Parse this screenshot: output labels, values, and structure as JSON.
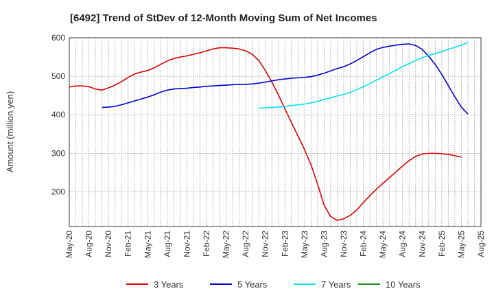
{
  "chart_data": {
    "type": "line",
    "title": "[6492]  Trend of StDev of 12-Month Moving Sum of Net Incomes",
    "ylabel": "Amount (million yen)",
    "xlabel": "",
    "ylim": [
      110,
      600
    ],
    "yticks": [
      200,
      300,
      400,
      500,
      600
    ],
    "x_range": [
      "2020-05",
      "2025-08"
    ],
    "x_tick_labels": [
      "May-20",
      "Aug-20",
      "Nov-20",
      "Feb-21",
      "May-21",
      "Aug-21",
      "Nov-21",
      "Feb-22",
      "May-22",
      "Aug-22",
      "Nov-22",
      "Feb-23",
      "May-23",
      "Aug-23",
      "Nov-23",
      "Feb-24",
      "May-24",
      "Aug-24",
      "Nov-24",
      "Feb-25",
      "May-25",
      "Aug-25"
    ],
    "grid": true,
    "legend_position": "bottom",
    "series": [
      {
        "name": "3 Years",
        "color": "#dd0000",
        "points": [
          [
            "2020-05",
            472
          ],
          [
            "2020-06",
            475
          ],
          [
            "2020-07",
            475
          ],
          [
            "2020-08",
            473
          ],
          [
            "2020-09",
            467
          ],
          [
            "2020-10",
            464
          ],
          [
            "2020-11",
            470
          ],
          [
            "2020-12",
            477
          ],
          [
            "2021-01",
            486
          ],
          [
            "2021-02",
            497
          ],
          [
            "2021-03",
            506
          ],
          [
            "2021-04",
            511
          ],
          [
            "2021-05",
            515
          ],
          [
            "2021-06",
            522
          ],
          [
            "2021-07",
            531
          ],
          [
            "2021-08",
            540
          ],
          [
            "2021-09",
            546
          ],
          [
            "2021-10",
            550
          ],
          [
            "2021-11",
            553
          ],
          [
            "2021-12",
            557
          ],
          [
            "2022-01",
            561
          ],
          [
            "2022-02",
            566
          ],
          [
            "2022-03",
            571
          ],
          [
            "2022-04",
            574
          ],
          [
            "2022-05",
            574
          ],
          [
            "2022-06",
            573
          ],
          [
            "2022-07",
            571
          ],
          [
            "2022-08",
            566
          ],
          [
            "2022-09",
            557
          ],
          [
            "2022-10",
            541
          ],
          [
            "2022-11",
            515
          ],
          [
            "2022-12",
            485
          ],
          [
            "2023-01",
            452
          ],
          [
            "2023-02",
            415
          ],
          [
            "2023-03",
            380
          ],
          [
            "2023-04",
            345
          ],
          [
            "2023-05",
            310
          ],
          [
            "2023-06",
            270
          ],
          [
            "2023-07",
            220
          ],
          [
            "2023-08",
            165
          ],
          [
            "2023-09",
            136
          ],
          [
            "2023-10",
            126
          ],
          [
            "2023-11",
            130
          ],
          [
            "2023-12",
            139
          ],
          [
            "2024-01",
            153
          ],
          [
            "2024-02",
            172
          ],
          [
            "2024-03",
            190
          ],
          [
            "2024-04",
            207
          ],
          [
            "2024-05",
            222
          ],
          [
            "2024-06",
            237
          ],
          [
            "2024-07",
            252
          ],
          [
            "2024-08",
            267
          ],
          [
            "2024-09",
            281
          ],
          [
            "2024-10",
            292
          ],
          [
            "2024-11",
            298
          ],
          [
            "2024-12",
            300
          ],
          [
            "2025-01",
            300
          ],
          [
            "2025-02",
            299
          ],
          [
            "2025-03",
            297
          ],
          [
            "2025-04",
            294
          ],
          [
            "2025-05",
            290
          ]
        ]
      },
      {
        "name": "5 Years",
        "color": "#0000cc",
        "points": [
          [
            "2020-10",
            419
          ],
          [
            "2020-11",
            420
          ],
          [
            "2020-12",
            422
          ],
          [
            "2021-01",
            426
          ],
          [
            "2021-02",
            431
          ],
          [
            "2021-03",
            436
          ],
          [
            "2021-04",
            441
          ],
          [
            "2021-05",
            446
          ],
          [
            "2021-06",
            452
          ],
          [
            "2021-07",
            459
          ],
          [
            "2021-08",
            464
          ],
          [
            "2021-09",
            467
          ],
          [
            "2021-10",
            468
          ],
          [
            "2021-11",
            469
          ],
          [
            "2021-12",
            471
          ],
          [
            "2022-01",
            472
          ],
          [
            "2022-02",
            474
          ],
          [
            "2022-03",
            475
          ],
          [
            "2022-04",
            476
          ],
          [
            "2022-05",
            477
          ],
          [
            "2022-06",
            478
          ],
          [
            "2022-07",
            479
          ],
          [
            "2022-08",
            479
          ],
          [
            "2022-09",
            480
          ],
          [
            "2022-10",
            482
          ],
          [
            "2022-11",
            485
          ],
          [
            "2022-12",
            488
          ],
          [
            "2023-01",
            491
          ],
          [
            "2023-02",
            493
          ],
          [
            "2023-03",
            495
          ],
          [
            "2023-04",
            496
          ],
          [
            "2023-05",
            497
          ],
          [
            "2023-06",
            499
          ],
          [
            "2023-07",
            503
          ],
          [
            "2023-08",
            508
          ],
          [
            "2023-09",
            514
          ],
          [
            "2023-10",
            520
          ],
          [
            "2023-11",
            525
          ],
          [
            "2023-12",
            532
          ],
          [
            "2024-01",
            541
          ],
          [
            "2024-02",
            551
          ],
          [
            "2024-03",
            561
          ],
          [
            "2024-04",
            570
          ],
          [
            "2024-05",
            575
          ],
          [
            "2024-06",
            578
          ],
          [
            "2024-07",
            581
          ],
          [
            "2024-08",
            583
          ],
          [
            "2024-09",
            584
          ],
          [
            "2024-10",
            580
          ],
          [
            "2024-11",
            570
          ],
          [
            "2024-12",
            552
          ],
          [
            "2025-01",
            531
          ],
          [
            "2025-02",
            505
          ],
          [
            "2025-03",
            476
          ],
          [
            "2025-04",
            447
          ],
          [
            "2025-05",
            420
          ],
          [
            "2025-06",
            402
          ]
        ]
      },
      {
        "name": "7 Years",
        "color": "#00e5ee",
        "points": [
          [
            "2022-10",
            417
          ],
          [
            "2022-11",
            418
          ],
          [
            "2022-12",
            419
          ],
          [
            "2023-01",
            420
          ],
          [
            "2023-02",
            422
          ],
          [
            "2023-03",
            424
          ],
          [
            "2023-04",
            426
          ],
          [
            "2023-05",
            428
          ],
          [
            "2023-06",
            431
          ],
          [
            "2023-07",
            435
          ],
          [
            "2023-08",
            440
          ],
          [
            "2023-09",
            444
          ],
          [
            "2023-10",
            449
          ],
          [
            "2023-11",
            453
          ],
          [
            "2023-12",
            458
          ],
          [
            "2024-01",
            465
          ],
          [
            "2024-02",
            473
          ],
          [
            "2024-03",
            481
          ],
          [
            "2024-04",
            490
          ],
          [
            "2024-05",
            498
          ],
          [
            "2024-06",
            507
          ],
          [
            "2024-07",
            516
          ],
          [
            "2024-08",
            525
          ],
          [
            "2024-09",
            533
          ],
          [
            "2024-10",
            541
          ],
          [
            "2024-11",
            548
          ],
          [
            "2024-12",
            554
          ],
          [
            "2025-01",
            559
          ],
          [
            "2025-02",
            564
          ],
          [
            "2025-03",
            570
          ],
          [
            "2025-04",
            575
          ],
          [
            "2025-05",
            581
          ],
          [
            "2025-06",
            587
          ]
        ]
      },
      {
        "name": "10 Years",
        "color": "#228b22",
        "points": []
      }
    ]
  }
}
